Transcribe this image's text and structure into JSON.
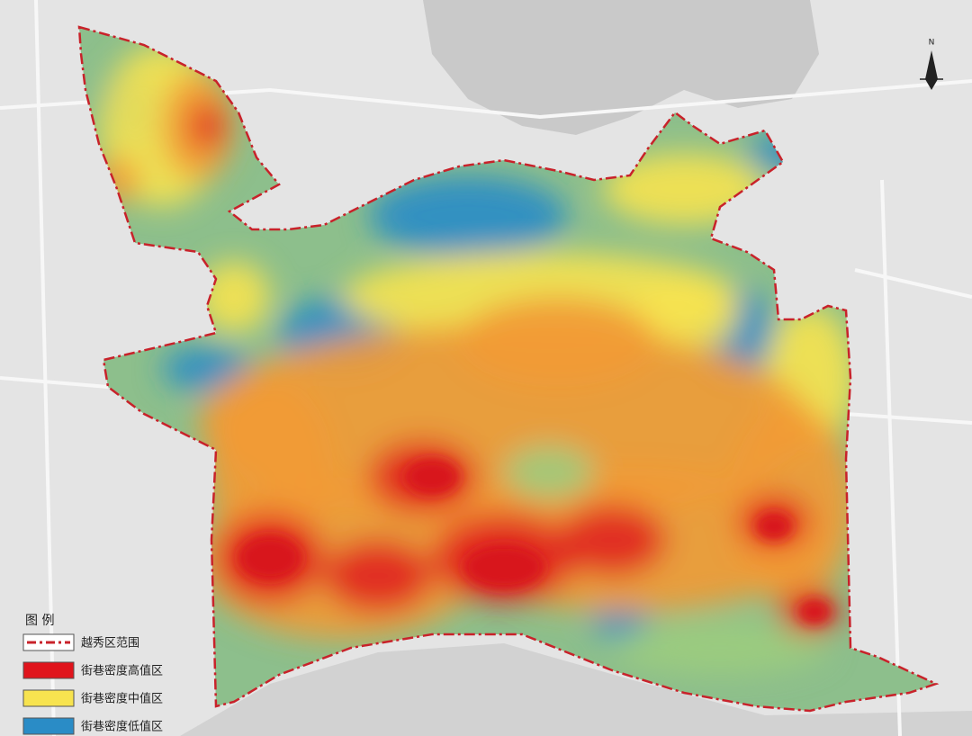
{
  "north": "N",
  "legend": {
    "title": "图 例",
    "items": [
      {
        "label": "越秀区范围",
        "color": "#c8222a"
      },
      {
        "label": "街巷密度高值区",
        "color": "#e0141c"
      },
      {
        "label": "街巷密度中值区",
        "color": "#f7e34f"
      },
      {
        "label": "街巷密度低值区",
        "color": "#2a8cc6"
      }
    ]
  }
}
